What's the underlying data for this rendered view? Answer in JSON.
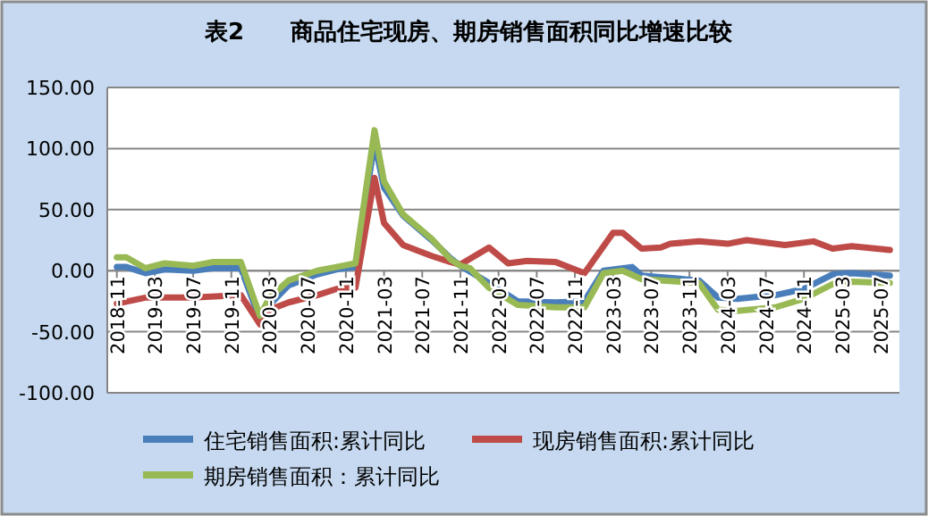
{
  "chart_data": {
    "type": "line",
    "title": "表2　　商品住宅现房、期房销售面积同比增速比较",
    "xlim": [
      "2018-10",
      "2025-09"
    ],
    "xticks": [
      "2018-11",
      "2019-03",
      "2019-07",
      "2019-11",
      "2020-03",
      "2020-07",
      "2020-11",
      "2021-03",
      "2021-07",
      "2021-11",
      "2022-03",
      "2022-07",
      "2022-11",
      "2023-03",
      "2023-07",
      "2023-11",
      "2024-03",
      "2024-07",
      "2024-11",
      "2025-03",
      "2025-07"
    ],
    "ylim": [
      -100,
      150
    ],
    "yticks": [
      {
        "value": -100,
        "label": "-100.00"
      },
      {
        "value": -50,
        "label": "-50.00"
      },
      {
        "value": 0,
        "label": "0.00"
      },
      {
        "value": 50,
        "label": "50.00"
      },
      {
        "value": 100,
        "label": "100.00"
      },
      {
        "value": 150,
        "label": "150.00"
      }
    ],
    "grid": "y",
    "legend": "bottom",
    "series": [
      {
        "name": "住宅销售面积:累计同比",
        "color": "#4a7ebb",
        "x": [
          "2018-11",
          "2018-12",
          "2019-02",
          "2019-04",
          "2019-07",
          "2019-09",
          "2019-12",
          "2020-02",
          "2020-03",
          "2020-05",
          "2020-08",
          "2020-10",
          "2020-12",
          "2021-02",
          "2021-03",
          "2021-05",
          "2021-08",
          "2021-10",
          "2021-11",
          "2022-02",
          "2022-05",
          "2022-09",
          "2022-12",
          "2023-02",
          "2023-05",
          "2023-06",
          "2023-12",
          "2024-02",
          "2024-04",
          "2024-08",
          "2024-11",
          "2025-02",
          "2025-04",
          "2025-08"
        ],
        "values": [
          3,
          3,
          -2,
          1,
          0,
          2,
          2,
          -40,
          -28,
          -12,
          -3,
          1,
          3,
          105,
          68,
          45,
          25,
          10,
          4,
          -10,
          -25,
          -26,
          -25,
          0,
          3,
          -4,
          -8,
          -22,
          -23,
          -20,
          -15,
          -3,
          -2,
          -4
        ]
      },
      {
        "name": "现房销售面积:累计同比",
        "color": "#be4b48",
        "x": [
          "2018-11",
          "2019-02",
          "2019-07",
          "2019-12",
          "2020-02",
          "2020-03",
          "2020-05",
          "2020-08",
          "2020-10",
          "2020-12",
          "2021-02",
          "2021-03",
          "2021-05",
          "2021-08",
          "2021-10",
          "2021-11",
          "2022-02",
          "2022-04",
          "2022-06",
          "2022-09",
          "2022-12",
          "2023-03",
          "2023-04",
          "2023-06",
          "2023-08",
          "2023-09",
          "2023-12",
          "2024-03",
          "2024-05",
          "2024-09",
          "2024-12",
          "2025-02",
          "2025-04",
          "2025-08"
        ],
        "values": [
          -27,
          -22,
          -22,
          -20,
          -44,
          -32,
          -26,
          -20,
          -15,
          -14,
          76,
          39,
          21,
          12,
          7,
          5,
          19,
          6,
          8,
          7,
          -2,
          31,
          31,
          18,
          19,
          22,
          24,
          22,
          25,
          21,
          24,
          18,
          20,
          17
        ]
      },
      {
        "name": "期房销售面积：累计同比",
        "color": "#98b954",
        "x": [
          "2018-11",
          "2018-12",
          "2019-02",
          "2019-04",
          "2019-07",
          "2019-09",
          "2019-12",
          "2020-02",
          "2020-03",
          "2020-05",
          "2020-08",
          "2020-10",
          "2020-12",
          "2021-02",
          "2021-03",
          "2021-05",
          "2021-08",
          "2021-10",
          "2021-11",
          "2021-12",
          "2022-02",
          "2022-05",
          "2022-09",
          "2022-12",
          "2023-02",
          "2023-04",
          "2023-06",
          "2023-12",
          "2024-02",
          "2024-04",
          "2024-08",
          "2024-11",
          "2025-02",
          "2025-04",
          "2025-08"
        ],
        "values": [
          11,
          11,
          2,
          6,
          4,
          7,
          7,
          -37,
          -22,
          -8,
          0,
          3,
          6,
          115,
          73,
          46,
          26,
          9,
          4,
          2,
          -14,
          -28,
          -30,
          -30,
          -2,
          0,
          -7,
          -10,
          -32,
          -33,
          -30,
          -23,
          -11,
          -9,
          -10
        ]
      }
    ]
  }
}
